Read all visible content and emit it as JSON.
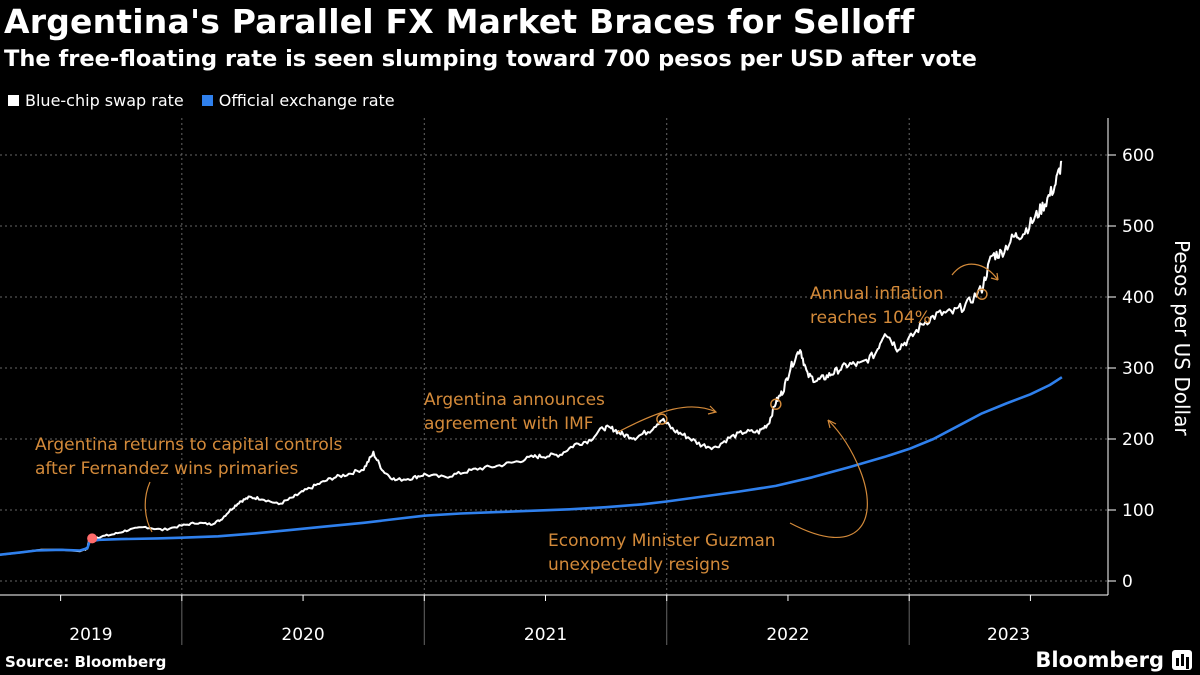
{
  "title": "Argentina's Parallel FX Market Braces for Selloff",
  "subtitle": "The free-floating rate is seen slumping toward 700 pesos per USD after vote",
  "legend": [
    {
      "label": "Blue-chip swap rate",
      "color": "#ffffff"
    },
    {
      "label": "Official exchange rate",
      "color": "#2f80ed"
    }
  ],
  "source": "Source: Bloomberg",
  "brand": "Bloomberg",
  "colors": {
    "annotation": "#d38a3a",
    "official": "#2f80ed",
    "swap": "#ffffff",
    "marker": "#ff6b6b",
    "grid": "#666666"
  },
  "chart_data": {
    "type": "line",
    "title": "Argentina's Parallel FX Market Braces for Selloff",
    "xlabel": "",
    "ylabel": "Pesos per US Dollar",
    "ylim": [
      0,
      650
    ],
    "yticks": [
      0,
      100,
      200,
      300,
      400,
      500,
      600
    ],
    "year_labels": [
      "2019",
      "2020",
      "2021",
      "2022",
      "2023"
    ],
    "xrange": [
      2019.25,
      2023.65
    ],
    "series": [
      {
        "name": "Blue-chip swap rate",
        "color": "#ffffff",
        "points": [
          [
            2019.25,
            37
          ],
          [
            2019.33,
            40
          ],
          [
            2019.42,
            44
          ],
          [
            2019.5,
            44
          ],
          [
            2019.58,
            42
          ],
          [
            2019.61,
            46
          ],
          [
            2019.62,
            60
          ],
          [
            2019.66,
            62
          ],
          [
            2019.72,
            66
          ],
          [
            2019.78,
            72
          ],
          [
            2019.85,
            76
          ],
          [
            2019.92,
            72
          ],
          [
            2020.0,
            78
          ],
          [
            2020.06,
            82
          ],
          [
            2020.12,
            80
          ],
          [
            2020.16,
            86
          ],
          [
            2020.2,
            100
          ],
          [
            2020.24,
            112
          ],
          [
            2020.28,
            118
          ],
          [
            2020.33,
            116
          ],
          [
            2020.4,
            108
          ],
          [
            2020.46,
            118
          ],
          [
            2020.5,
            126
          ],
          [
            2020.56,
            136
          ],
          [
            2020.62,
            145
          ],
          [
            2020.68,
            150
          ],
          [
            2020.75,
            158
          ],
          [
            2020.79,
            180
          ],
          [
            2020.83,
            155
          ],
          [
            2020.88,
            142
          ],
          [
            2020.95,
            145
          ],
          [
            2021.0,
            150
          ],
          [
            2021.08,
            146
          ],
          [
            2021.15,
            152
          ],
          [
            2021.22,
            158
          ],
          [
            2021.3,
            162
          ],
          [
            2021.38,
            168
          ],
          [
            2021.45,
            175
          ],
          [
            2021.5,
            176
          ],
          [
            2021.56,
            178
          ],
          [
            2021.62,
            192
          ],
          [
            2021.68,
            198
          ],
          [
            2021.74,
            216
          ],
          [
            2021.78,
            214
          ],
          [
            2021.82,
            206
          ],
          [
            2021.87,
            202
          ],
          [
            2021.93,
            212
          ],
          [
            2021.98,
            228
          ],
          [
            2022.03,
            212
          ],
          [
            2022.08,
            204
          ],
          [
            2022.14,
            192
          ],
          [
            2022.2,
            188
          ],
          [
            2022.26,
            202
          ],
          [
            2022.32,
            210
          ],
          [
            2022.38,
            210
          ],
          [
            2022.42,
            222
          ],
          [
            2022.45,
            252
          ],
          [
            2022.48,
            268
          ],
          [
            2022.51,
            300
          ],
          [
            2022.55,
            328
          ],
          [
            2022.58,
            290
          ],
          [
            2022.62,
            282
          ],
          [
            2022.66,
            288
          ],
          [
            2022.7,
            296
          ],
          [
            2022.75,
            305
          ],
          [
            2022.8,
            305
          ],
          [
            2022.86,
            320
          ],
          [
            2022.9,
            352
          ],
          [
            2022.95,
            328
          ],
          [
            2023.0,
            340
          ],
          [
            2023.06,
            364
          ],
          [
            2023.12,
            376
          ],
          [
            2023.18,
            378
          ],
          [
            2023.24,
            390
          ],
          [
            2023.3,
            412
          ],
          [
            2023.34,
            458
          ],
          [
            2023.38,
            462
          ],
          [
            2023.43,
            484
          ],
          [
            2023.47,
            490
          ],
          [
            2023.52,
            512
          ],
          [
            2023.56,
            532
          ],
          [
            2023.6,
            556
          ],
          [
            2023.63,
            590
          ]
        ]
      },
      {
        "name": "Official exchange rate",
        "color": "#2f80ed",
        "points": [
          [
            2019.25,
            37
          ],
          [
            2019.33,
            40
          ],
          [
            2019.4,
            43
          ],
          [
            2019.5,
            44
          ],
          [
            2019.58,
            43
          ],
          [
            2019.61,
            46
          ],
          [
            2019.62,
            56
          ],
          [
            2019.66,
            58
          ],
          [
            2019.75,
            59
          ],
          [
            2019.9,
            60
          ],
          [
            2020.0,
            61
          ],
          [
            2020.15,
            63
          ],
          [
            2020.3,
            67
          ],
          [
            2020.45,
            72
          ],
          [
            2020.6,
            77
          ],
          [
            2020.75,
            82
          ],
          [
            2020.9,
            88
          ],
          [
            2021.0,
            92
          ],
          [
            2021.15,
            95
          ],
          [
            2021.3,
            97
          ],
          [
            2021.45,
            99
          ],
          [
            2021.6,
            101
          ],
          [
            2021.75,
            104
          ],
          [
            2021.9,
            108
          ],
          [
            2022.0,
            112
          ],
          [
            2022.15,
            119
          ],
          [
            2022.3,
            126
          ],
          [
            2022.45,
            134
          ],
          [
            2022.6,
            146
          ],
          [
            2022.75,
            160
          ],
          [
            2022.9,
            175
          ],
          [
            2023.0,
            186
          ],
          [
            2023.1,
            200
          ],
          [
            2023.2,
            218
          ],
          [
            2023.3,
            236
          ],
          [
            2023.4,
            250
          ],
          [
            2023.5,
            263
          ],
          [
            2023.58,
            276
          ],
          [
            2023.63,
            287
          ]
        ]
      }
    ],
    "annotations": [
      {
        "lines": [
          "Argentina returns to capital controls",
          "after Fernandez wins primaries"
        ]
      },
      {
        "lines": [
          "Argentina announces",
          "agreement with IMF"
        ]
      },
      {
        "lines": [
          "Economy Minister Guzman",
          "unexpectedly resigns"
        ]
      },
      {
        "lines": [
          "Annual inflation",
          "reaches 104%"
        ]
      }
    ]
  }
}
